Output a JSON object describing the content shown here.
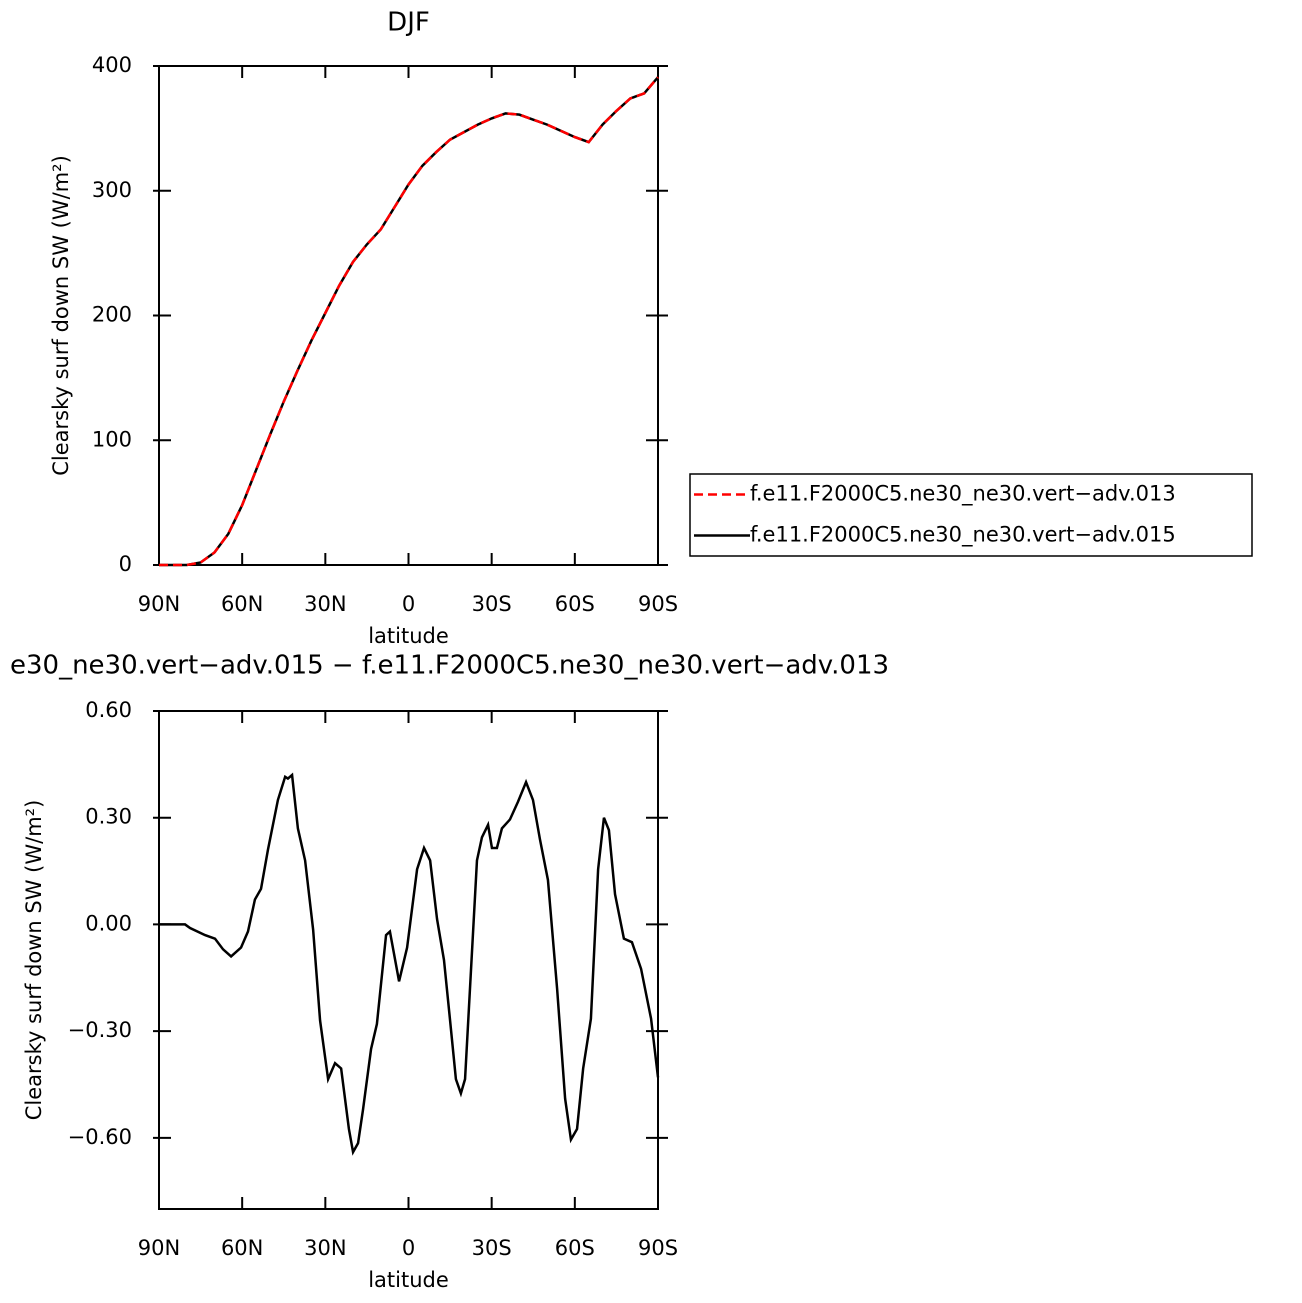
{
  "chart_data": [
    {
      "type": "line",
      "title": "DJF",
      "xlabel": "latitude",
      "ylabel": "Clearsky surf down SW (W/m²)",
      "x": [
        90,
        80,
        75,
        70,
        65,
        60,
        55,
        50,
        45,
        40,
        35,
        30,
        25,
        20,
        15,
        10,
        5,
        0,
        -5,
        -10,
        -15,
        -20,
        -25,
        -30,
        -35,
        -40,
        -45,
        -50,
        -55,
        -60,
        -65,
        -70,
        -75,
        -80,
        -85,
        -90
      ],
      "series": [
        {
          "name": "f.e11.F2000C5.ne30_ne30.vert−adv.013",
          "color": "#ff0000",
          "dashed": true,
          "values": [
            0,
            0,
            2,
            10,
            25,
            48,
            76,
            104,
            131,
            156,
            180,
            202,
            224,
            243,
            257,
            269,
            287,
            305,
            320,
            331,
            341,
            347,
            353,
            358,
            362,
            361,
            357,
            353,
            348,
            343,
            339,
            353,
            364,
            374,
            378,
            391
          ]
        },
        {
          "name": "f.e11.F2000C5.ne30_ne30.vert−adv.015",
          "color": "#000000",
          "dashed": false,
          "values": [
            0,
            0,
            2,
            10,
            25,
            48,
            76,
            104,
            131,
            156,
            180,
            202,
            224,
            243,
            257,
            269,
            287,
            305,
            320,
            331,
            341,
            347,
            353,
            358,
            362,
            361,
            357,
            353,
            348,
            343,
            339,
            353,
            364,
            374,
            378,
            391
          ]
        }
      ],
      "xlim": [
        90,
        -90
      ],
      "xticks": [
        {
          "value": 90,
          "label": "90N"
        },
        {
          "value": 60,
          "label": "60N"
        },
        {
          "value": 30,
          "label": "30N"
        },
        0,
        {
          "value": -30,
          "label": "30S"
        },
        {
          "value": -60,
          "label": "60S"
        },
        {
          "value": -90,
          "label": "90S"
        }
      ],
      "ylim": [
        0,
        400
      ],
      "yticks": [
        0,
        100,
        200,
        300,
        400
      ],
      "legend": "right"
    },
    {
      "type": "line",
      "title": "e30_ne30.vert−adv.015 − f.e11.F2000C5.ne30_ne30.vert−adv.013",
      "xlabel": "latitude",
      "ylabel": "Clearsky surf down SW (W/m²)",
      "x": [
        90,
        80.6,
        78.8,
        73.4,
        69.8,
        66.9,
        64,
        60.4,
        57.9,
        55.4,
        53.2,
        50.7,
        47.1,
        44.5,
        43.5,
        42,
        39.9,
        37.3,
        34.4,
        31.9,
        29,
        26.5,
        24.3,
        21.5,
        20,
        18.2,
        16.4,
        13.5,
        11.4,
        8.1,
        6.7,
        3.4,
        0.5,
        -3.1,
        -5.6,
        -7.8,
        -10.3,
        -12.8,
        -15,
        -17.1,
        -18.9,
        -20.4,
        -24.7,
        -26.5,
        -28.7,
        -30.1,
        -31.9,
        -33.7,
        -36.6,
        -39.5,
        -42.4,
        -44.9,
        -47.4,
        -50.3,
        -53.6,
        -56.5,
        -58.6,
        -60.8,
        -63,
        -65.8,
        -68.4,
        -70.5,
        -72.3,
        -74.5,
        -77.7,
        -80.6,
        -83.9,
        -87.5,
        -90
      ],
      "series": [
        {
          "color": "#000000",
          "dashed": false,
          "values": [
            0,
            0,
            -0.01,
            -0.03,
            -0.04,
            -0.07,
            -0.09,
            -0.065,
            -0.02,
            0.07,
            0.1,
            0.21,
            0.35,
            0.415,
            0.41,
            0.42,
            0.27,
            0.18,
            -0.015,
            -0.27,
            -0.435,
            -0.39,
            -0.405,
            -0.575,
            -0.64,
            -0.615,
            -0.52,
            -0.35,
            -0.28,
            -0.03,
            -0.02,
            -0.16,
            -0.065,
            0.155,
            0.215,
            0.18,
            0.015,
            -0.1,
            -0.27,
            -0.435,
            -0.475,
            -0.435,
            0.18,
            0.245,
            0.28,
            0.215,
            0.215,
            0.27,
            0.295,
            0.345,
            0.4,
            0.35,
            0.24,
            0.125,
            -0.18,
            -0.49,
            -0.605,
            -0.575,
            -0.405,
            -0.265,
            0.155,
            0.3,
            0.265,
            0.085,
            -0.04,
            -0.05,
            -0.125,
            -0.265,
            -0.43
          ]
        }
      ],
      "xlim": [
        90,
        -90
      ],
      "xticks": [
        {
          "value": 90,
          "label": "90N"
        },
        {
          "value": 60,
          "label": "60N"
        },
        {
          "value": 30,
          "label": "30N"
        },
        0,
        {
          "value": -30,
          "label": "30S"
        },
        {
          "value": -60,
          "label": "60S"
        },
        {
          "value": -90,
          "label": "90S"
        }
      ],
      "ylim": [
        -0.8,
        0.6
      ],
      "yticks": [
        {
          "value": -0.6,
          "label": "−0.60"
        },
        {
          "value": -0.3,
          "label": "−0.30"
        },
        {
          "value": 0,
          "label": "0.00"
        },
        {
          "value": 0.3,
          "label": "0.30"
        },
        {
          "value": 0.6,
          "label": "0.60"
        }
      ]
    }
  ]
}
